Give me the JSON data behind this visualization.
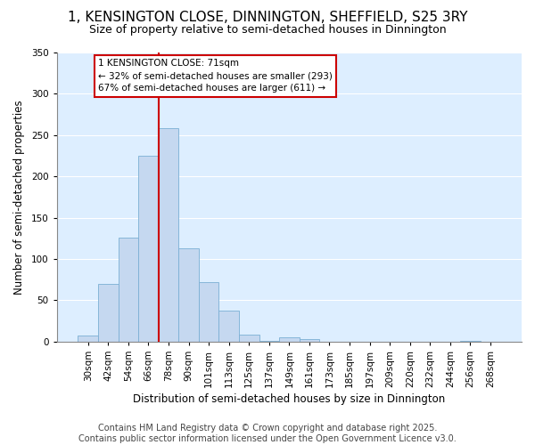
{
  "title": "1, KENSINGTON CLOSE, DINNINGTON, SHEFFIELD, S25 3RY",
  "subtitle": "Size of property relative to semi-detached houses in Dinnington",
  "xlabel": "Distribution of semi-detached houses by size in Dinnington",
  "ylabel": "Number of semi-detached properties",
  "bar_color": "#c5d8f0",
  "bar_edge_color": "#7bafd4",
  "background_color": "#ddeeff",
  "annotation_box_color": "#cc0000",
  "vline_color": "#cc0000",
  "annotation_text": "1 KENSINGTON CLOSE: 71sqm\n← 32% of semi-detached houses are smaller (293)\n67% of semi-detached houses are larger (611) →",
  "categories": [
    "30sqm",
    "42sqm",
    "54sqm",
    "66sqm",
    "78sqm",
    "90sqm",
    "101sqm",
    "113sqm",
    "125sqm",
    "137sqm",
    "149sqm",
    "161sqm",
    "173sqm",
    "185sqm",
    "197sqm",
    "209sqm",
    "220sqm",
    "232sqm",
    "244sqm",
    "256sqm",
    "268sqm"
  ],
  "values": [
    7,
    70,
    126,
    225,
    258,
    113,
    72,
    38,
    9,
    1,
    5,
    3,
    0,
    0,
    0,
    0,
    0,
    0,
    0,
    1,
    0
  ],
  "vline_index": 3.5,
  "ylim": [
    0,
    350
  ],
  "yticks": [
    0,
    50,
    100,
    150,
    200,
    250,
    300,
    350
  ],
  "footer_text": "Contains HM Land Registry data © Crown copyright and database right 2025.\nContains public sector information licensed under the Open Government Licence v3.0.",
  "title_fontsize": 11,
  "subtitle_fontsize": 9,
  "label_fontsize": 8.5,
  "tick_fontsize": 7.5,
  "footer_fontsize": 7
}
